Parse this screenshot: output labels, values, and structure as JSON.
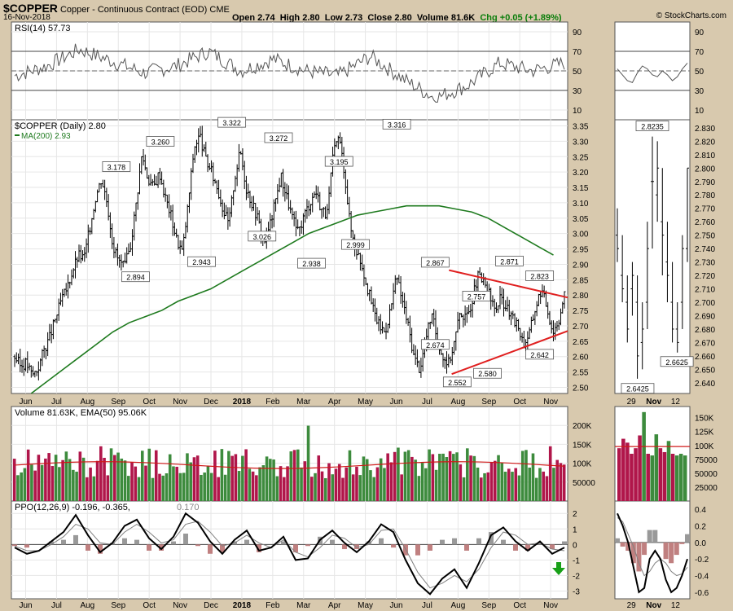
{
  "header": {
    "symbol": "$COPPER",
    "name": "Copper - Continuous Contract (EOD)",
    "exchange": "CME",
    "date": "16-Nov-2018",
    "brand": "© StockCharts.com",
    "open": "Open 2.74",
    "high": "High 2.80",
    "low": "Low 2.73",
    "close": "Close 2.80",
    "volume": "Volume 81.6K",
    "chg": "Chg +0.05 (+1.89%)"
  },
  "colors": {
    "background": "#d8c9ae",
    "panel": "#ffffff",
    "up_bar": "#3d8b3d",
    "down_bar": "#b0164a",
    "ma200": "#1e7a1e",
    "trendline": "#e02020",
    "ppo_main": "#000000",
    "ppo_signal": "#808080",
    "histogram": "#a0504f",
    "arrow": "#18a018"
  },
  "icons": {
    "buy_signal": "green-up-arrow-icon"
  },
  "chart_data": [
    {
      "type": "line",
      "title": "RSI(14) 57.73",
      "yticks": [
        10,
        30,
        50,
        70,
        90
      ],
      "ylim": [
        0,
        100
      ],
      "bands": [
        30,
        70
      ],
      "x": [
        "Jun",
        "Jul",
        "Aug",
        "Sep",
        "Oct",
        "Nov",
        "Dec",
        "Jan",
        "Feb",
        "Mar",
        "Apr",
        "May",
        "Jun",
        "Jul",
        "Aug",
        "Sep",
        "Oct",
        "Nov"
      ],
      "values": [
        45,
        55,
        72,
        60,
        48,
        55,
        70,
        50,
        62,
        50,
        45,
        65,
        42,
        22,
        35,
        58,
        50,
        58
      ]
    },
    {
      "type": "bar",
      "title": "$COPPER (Daily) 2.80",
      "ma_label": "MA(200) 2.93",
      "yticks": [
        2.5,
        2.55,
        2.6,
        2.65,
        2.7,
        2.75,
        2.8,
        2.85,
        2.9,
        2.95,
        3.0,
        3.05,
        3.1,
        3.15,
        3.2,
        3.25,
        3.3,
        3.35
      ],
      "ylim": [
        2.48,
        3.37
      ],
      "xticks": [
        "Jun",
        "Jul",
        "Aug",
        "Sep",
        "Oct",
        "Nov",
        "Dec",
        "2018",
        "Feb",
        "Mar",
        "Apr",
        "May",
        "Jun",
        "Jul",
        "Aug",
        "Sep",
        "Oct",
        "Nov"
      ],
      "close_path": [
        2.6,
        2.57,
        2.58,
        2.54,
        2.56,
        2.62,
        2.66,
        2.72,
        2.78,
        2.82,
        2.88,
        2.93,
        2.92,
        3.02,
        3.12,
        3.18,
        3.1,
        2.96,
        2.91,
        2.89,
        2.96,
        3.1,
        3.26,
        3.18,
        3.15,
        3.2,
        3.12,
        3.06,
        2.98,
        2.94,
        3.1,
        3.28,
        3.32,
        3.24,
        3.2,
        3.15,
        3.08,
        3.03,
        3.18,
        3.27,
        3.15,
        3.1,
        3.05,
        2.97,
        3.02,
        3.1,
        3.19,
        3.12,
        3.05,
        3.0,
        3.06,
        3.1,
        3.14,
        3.08,
        3.06,
        3.25,
        3.32,
        3.2,
        3.02,
        2.95,
        2.9,
        2.82,
        2.75,
        2.7,
        2.68,
        2.76,
        2.86,
        2.78,
        2.7,
        2.6,
        2.56,
        2.65,
        2.74,
        2.66,
        2.6,
        2.58,
        2.65,
        2.75,
        2.72,
        2.78,
        2.86,
        2.84,
        2.8,
        2.75,
        2.79,
        2.76,
        2.72,
        2.7,
        2.64,
        2.68,
        2.76,
        2.82,
        2.76,
        2.68,
        2.72,
        2.8
      ],
      "ma200": [
        2.48,
        2.52,
        2.56,
        2.6,
        2.64,
        2.68,
        2.71,
        2.73,
        2.75,
        2.78,
        2.8,
        2.82,
        2.85,
        2.88,
        2.91,
        2.94,
        2.97,
        3.0,
        3.02,
        3.04,
        3.06,
        3.07,
        3.08,
        3.09,
        3.09,
        3.09,
        3.08,
        3.07,
        3.05,
        3.02,
        2.99,
        2.96,
        2.93
      ],
      "annotations": [
        "3.178",
        "2.894",
        "3.260",
        "2.943",
        "3.322",
        "3.026",
        "3.272",
        "2.938",
        "3.195",
        "2.999",
        "3.316",
        "2.867",
        "2.674",
        "2.552",
        "2.757",
        "2.580",
        "2.871",
        "2.823",
        "2.642"
      ],
      "annotation_values": [
        3.178,
        2.894,
        3.26,
        2.943,
        3.322,
        3.026,
        3.272,
        2.938,
        3.195,
        2.999,
        3.316,
        2.867,
        2.674,
        2.552,
        2.757,
        2.58,
        2.871,
        2.823,
        2.642
      ],
      "annotation_sides": [
        "up",
        "down",
        "up",
        "down",
        "up",
        "down",
        "up",
        "down",
        "up",
        "down",
        "up",
        "up",
        "down",
        "down",
        "up",
        "down",
        "up",
        "up",
        "down"
      ]
    },
    {
      "type": "bar",
      "title": "Volume 81.63K, EMA(50) 95.06K",
      "yticks": [
        "50000",
        "100K",
        "150K",
        "200K"
      ],
      "ytick_values": [
        50000,
        100000,
        150000,
        200000
      ],
      "ylim": [
        0,
        250000
      ]
    },
    {
      "type": "line",
      "title": "PPO(12,26,9) -0.196, -0.365, 0.170",
      "title_ppo": "PPO(12,26,9) -0.196, -0.365,",
      "title_hist": "0.170",
      "yticks": [
        "-3",
        "-2",
        "-1",
        "0",
        "1",
        "2"
      ],
      "ytick_values": [
        -3,
        -2,
        -1,
        0,
        1,
        2
      ],
      "ylim": [
        -3.5,
        2.8
      ],
      "ppo": [
        -0.2,
        -0.6,
        -0.4,
        0.2,
        0.8,
        1.9,
        0.6,
        -0.5,
        0.1,
        1.2,
        1.6,
        0.4,
        -0.3,
        0.5,
        2.0,
        1.4,
        0.2,
        -0.6,
        0.3,
        0.9,
        -0.4,
        -0.2,
        0.5,
        -1.0,
        -0.9,
        0.3,
        0.9,
        0.1,
        -0.5,
        0.2,
        1.3,
        0.8,
        -1.0,
        -2.5,
        -3.2,
        -2.2,
        -1.6,
        -2.8,
        -1.2,
        0.6,
        1.1,
        0.2,
        -0.4,
        0.2,
        -0.6,
        -0.2
      ],
      "signal": [
        -0.1,
        -0.4,
        -0.4,
        0.0,
        0.5,
        1.3,
        1.0,
        0.1,
        0.0,
        0.8,
        1.3,
        0.8,
        0.1,
        0.3,
        1.3,
        1.5,
        0.8,
        -0.1,
        0.1,
        0.6,
        0.1,
        -0.2,
        0.3,
        -0.5,
        -0.8,
        -0.2,
        0.6,
        0.4,
        -0.2,
        0.0,
        0.9,
        1.0,
        -0.3,
        -1.8,
        -2.8,
        -2.5,
        -2.0,
        -2.4,
        -1.6,
        -0.2,
        0.8,
        0.6,
        0.0,
        0.1,
        -0.3,
        -0.4
      ]
    },
    {
      "type": "line",
      "title": "RSI inset",
      "yticks": [
        10,
        30,
        50,
        70,
        90
      ],
      "ylim": [
        0,
        100
      ]
    },
    {
      "type": "bar",
      "title": "Price inset",
      "yticks": [
        2.64,
        2.65,
        2.66,
        2.67,
        2.68,
        2.69,
        2.7,
        2.71,
        2.72,
        2.73,
        2.74,
        2.75,
        2.76,
        2.77,
        2.78,
        2.79,
        2.8,
        2.81,
        2.82,
        2.83
      ],
      "ylim": [
        2.632,
        2.836
      ],
      "xticks": [
        "29",
        "Nov",
        "12"
      ],
      "annotations": [
        "2.8235",
        "2.6425",
        "2.6625"
      ],
      "annotation_values": [
        2.8235,
        2.6425,
        2.6625
      ]
    },
    {
      "type": "bar",
      "title": "Volume inset",
      "yticks": [
        "25000",
        "50000",
        "75000",
        "100K",
        "125K",
        "150K"
      ],
      "ytick_values": [
        25000,
        50000,
        75000,
        100000,
        125000,
        150000
      ],
      "ylim": [
        0,
        170000
      ],
      "values": [
        95000,
        112000,
        105000,
        85000,
        95000,
        118000,
        160000,
        85000,
        82000,
        120000,
        95000,
        88000,
        108000,
        85000,
        82000,
        85000,
        82000
      ],
      "up": [
        false,
        false,
        false,
        false,
        false,
        false,
        true,
        false,
        true,
        true,
        false,
        false,
        true,
        false,
        true,
        true,
        true
      ]
    },
    {
      "type": "line",
      "title": "PPO inset",
      "yticks": [
        "-0.6",
        "-0.4",
        "-0.2",
        "0.0",
        "0.2",
        "0.4"
      ],
      "ytick_values": [
        -0.6,
        -0.4,
        -0.2,
        0.0,
        0.2,
        0.4
      ],
      "ylim": [
        -0.68,
        0.5
      ],
      "ppo": [
        0.35,
        0.2,
        0.0,
        -0.3,
        -0.6,
        -0.55,
        -0.2,
        -0.1,
        -0.2,
        -0.45,
        -0.6,
        -0.55,
        -0.4,
        -0.2
      ],
      "signal": [
        0.3,
        0.25,
        0.1,
        -0.05,
        -0.25,
        -0.4,
        -0.35,
        -0.25,
        -0.2,
        -0.25,
        -0.35,
        -0.4,
        -0.38,
        -0.3
      ]
    }
  ]
}
